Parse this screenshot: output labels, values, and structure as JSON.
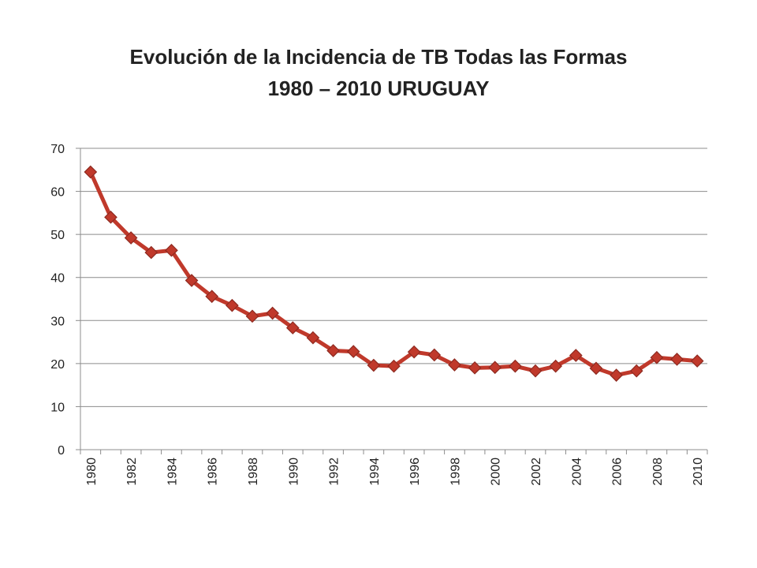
{
  "chart_data": {
    "type": "line",
    "title": "Evolución de la Incidencia de TB Todas las Formas",
    "subtitle": "1980 – 2010  URUGUAY",
    "xlabel": "",
    "ylabel": "",
    "ylim": [
      0,
      70
    ],
    "y_ticks": [
      0,
      10,
      20,
      30,
      40,
      50,
      60,
      70
    ],
    "x_tick_labels": [
      "1980",
      "1982",
      "1984",
      "1986",
      "1988",
      "1990",
      "1992",
      "1994",
      "1996",
      "1998",
      "2000",
      "2002",
      "2004",
      "2006",
      "2008",
      "2010"
    ],
    "grid": true,
    "legend": "none",
    "series": [
      {
        "color": "#c0392b",
        "x": [
          1980,
          1981,
          1982,
          1983,
          1984,
          1985,
          1986,
          1987,
          1988,
          1989,
          1990,
          1991,
          1992,
          1993,
          1994,
          1995,
          1996,
          1997,
          1998,
          1999,
          2000,
          2001,
          2002,
          2003,
          2004,
          2005,
          2006,
          2007,
          2008,
          2009,
          2010
        ],
        "values": [
          64.5,
          54.0,
          49.2,
          45.8,
          46.3,
          39.3,
          35.6,
          33.5,
          31.0,
          31.7,
          28.3,
          26.0,
          23.0,
          22.8,
          19.6,
          19.4,
          22.7,
          22.0,
          19.7,
          19.0,
          19.1,
          19.4,
          18.3,
          19.4,
          21.9,
          18.9,
          17.3,
          18.3,
          21.4,
          21.0,
          20.6
        ]
      }
    ]
  }
}
